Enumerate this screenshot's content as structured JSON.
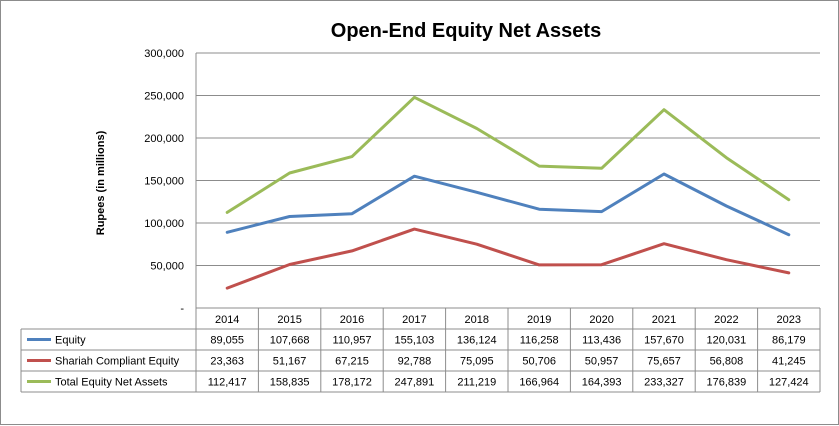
{
  "chart_data": {
    "type": "line",
    "title": "Open-End Equity Net Assets",
    "ylabel": "Rupees (in millions)",
    "xlabel": "",
    "ylim": [
      0,
      300000
    ],
    "yticks": [
      0,
      50000,
      100000,
      150000,
      200000,
      250000,
      300000
    ],
    "ytick_labels": [
      "-",
      "50,000",
      "100,000",
      "150,000",
      "200,000",
      "250,000",
      "300,000"
    ],
    "grid": true,
    "legend": "data-table-left",
    "categories": [
      "2014",
      "2015",
      "2016",
      "2017",
      "2018",
      "2019",
      "2020",
      "2021",
      "2022",
      "2023"
    ],
    "series": [
      {
        "name": "Equity",
        "color": "#4f81bd",
        "values": [
          89055,
          107668,
          110957,
          155103,
          136124,
          116258,
          113436,
          157670,
          120031,
          86179
        ],
        "labels": [
          "89,055",
          "107,668",
          "110,957",
          "155,103",
          "136,124",
          "116,258",
          "113,436",
          "157,670",
          "120,031",
          "86,179"
        ]
      },
      {
        "name": "Shariah Compliant Equity",
        "color": "#c0504d",
        "values": [
          23363,
          51167,
          67215,
          92788,
          75095,
          50706,
          50957,
          75657,
          56808,
          41245
        ],
        "labels": [
          "23,363",
          "51,167",
          "67,215",
          "92,788",
          "75,095",
          "50,706",
          "50,957",
          "75,657",
          "56,808",
          "41,245"
        ]
      },
      {
        "name": "Total Equity Net Assets",
        "color": "#9bbb59",
        "values": [
          112417,
          158835,
          178172,
          247891,
          211219,
          166964,
          164393,
          233327,
          176839,
          127424
        ],
        "labels": [
          "112,417",
          "158,835",
          "178,172",
          "247,891",
          "211,219",
          "166,964",
          "164,393",
          "233,327",
          "176,839",
          "127,424"
        ]
      }
    ]
  }
}
